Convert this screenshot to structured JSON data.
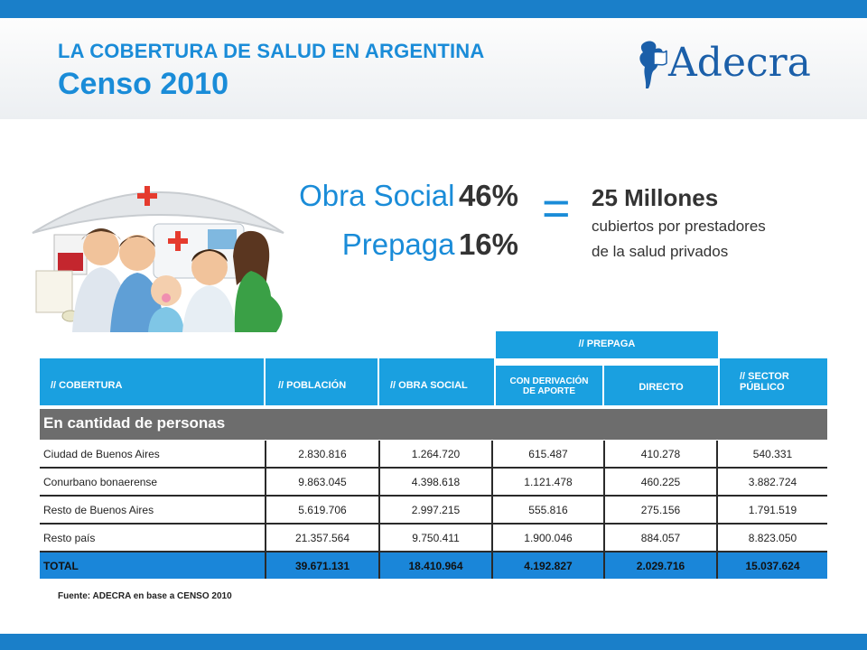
{
  "header": {
    "kicker": "LA COBERTURA DE SALUD EN ARGENTINA",
    "title": "Censo 2010",
    "logo_text": "Adecra"
  },
  "stats": [
    {
      "label": "Obra Social",
      "value": "46%"
    },
    {
      "label": "Prepaga",
      "value": "16%"
    }
  ],
  "equals": "=",
  "summary": {
    "headline": "25 Millones",
    "line1": "cubiertos por prestadores",
    "line2": "de la salud privados"
  },
  "table": {
    "group_header": "// PREPAGA",
    "headers": {
      "cobertura": "// COBERTURA",
      "poblacion": "// POBLACIÓN",
      "obra_social": "// OBRA SOCIAL",
      "con_derivacion_1": "CON DERIVACIÓN",
      "con_derivacion_2": "DE APORTE",
      "directo": "DIRECTO",
      "sector_publico_1": "// SECTOR",
      "sector_publico_2": "PÚBLICO"
    },
    "section_title": "En cantidad de personas",
    "rows": [
      {
        "label": "Ciudad de Buenos Aires",
        "poblacion": "2.830.816",
        "obra_social": "1.264.720",
        "con_derivacion": "615.487",
        "directo": "410.278",
        "sector_publico": "540.331"
      },
      {
        "label": "Conurbano bonaerense",
        "poblacion": "9.863.045",
        "obra_social": "4.398.618",
        "con_derivacion": "1.121.478",
        "directo": "460.225",
        "sector_publico": "3.882.724"
      },
      {
        "label": "Resto de Buenos Aires",
        "poblacion": "5.619.706",
        "obra_social": "2.997.215",
        "con_derivacion": "555.816",
        "directo": "275.156",
        "sector_publico": "1.791.519"
      },
      {
        "label": "Resto país",
        "poblacion": "21.357.564",
        "obra_social": "9.750.411",
        "con_derivacion": "1.900.046",
        "directo": "884.057",
        "sector_publico": "8.823.050"
      }
    ],
    "total": {
      "label": "TOTAL",
      "poblacion": "39.671.131",
      "obra_social": "18.410.964",
      "con_derivacion": "4.192.827",
      "directo": "2.029.716",
      "sector_publico": "15.037.624"
    }
  },
  "source": "Fuente: ADECRA en base a CENSO 2010",
  "colors": {
    "brand_blue": "#1a8cd8",
    "header_cell": "#1aa0e0",
    "total_row": "#1a86d9",
    "section_bar": "#6d6d6d"
  }
}
